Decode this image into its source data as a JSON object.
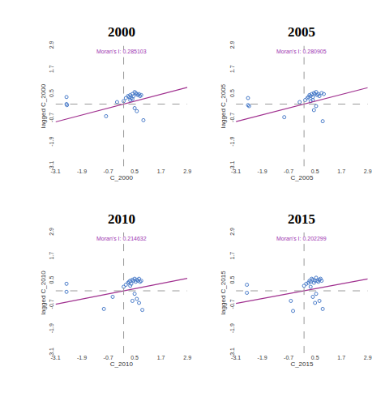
{
  "chart_data": [
    {
      "type": "scatter",
      "title": "2000",
      "annotation": "Moran's I: 0.285103",
      "x_label": "C_2000",
      "y_label": "lagged C_2000",
      "xlim": [
        -3.1,
        2.9
      ],
      "ylim": [
        -3.1,
        2.9
      ],
      "xticks": [
        -3.1,
        -1.9,
        -0.7,
        0.5,
        1.7,
        2.9
      ],
      "yticks": [
        -3.1,
        -1.9,
        -0.7,
        0.5,
        1.7,
        2.9
      ],
      "reference_lines": {
        "x": 0,
        "y": 0
      },
      "series": [
        {
          "type": "scatter",
          "color": "#4a7cc9",
          "marker": "open circle",
          "x": [
            -2.6,
            -2.6,
            -2.58,
            -0.8,
            -0.3,
            0.0,
            0.1,
            0.2,
            0.25,
            0.3,
            0.35,
            0.4,
            0.45,
            0.5,
            0.55,
            0.6,
            0.65,
            0.7,
            0.75,
            0.8,
            0.3,
            0.4,
            0.5,
            0.6,
            0.9
          ],
          "values": [
            0.35,
            0.0,
            -0.05,
            -0.6,
            0.1,
            0.15,
            0.3,
            0.4,
            0.35,
            0.45,
            0.3,
            0.5,
            0.4,
            0.6,
            0.55,
            0.5,
            0.45,
            0.5,
            0.4,
            0.45,
            0.2,
            0.25,
            -0.2,
            -0.35,
            -0.8
          ]
        },
        {
          "type": "line",
          "color": "#a0308f",
          "line_style": "solid",
          "x": [
            -3.1,
            2.9
          ],
          "values": [
            -0.884,
            0.827
          ]
        }
      ]
    },
    {
      "type": "scatter",
      "title": "2005",
      "annotation": "Moran's I: 0.280905",
      "x_label": "C_2005",
      "y_label": "lagged C_2005",
      "xlim": [
        -3.1,
        2.9
      ],
      "ylim": [
        -3.1,
        2.9
      ],
      "xticks": [
        -3.1,
        -1.9,
        -0.7,
        0.5,
        1.7,
        2.9
      ],
      "yticks": [
        -3.1,
        -1.9,
        -0.7,
        0.5,
        1.7,
        2.9
      ],
      "reference_lines": {
        "x": 0,
        "y": 0
      },
      "series": [
        {
          "type": "scatter",
          "color": "#4a7cc9",
          "marker": "open circle",
          "x": [
            -2.55,
            -2.55,
            -2.5,
            -0.9,
            -0.2,
            0.05,
            0.15,
            0.2,
            0.25,
            0.3,
            0.35,
            0.4,
            0.45,
            0.5,
            0.55,
            0.6,
            0.65,
            0.7,
            0.8,
            0.9,
            0.3,
            0.4,
            0.45,
            0.55,
            0.85
          ],
          "values": [
            0.3,
            -0.05,
            -0.1,
            -0.65,
            0.1,
            0.2,
            0.3,
            0.35,
            0.45,
            0.4,
            0.5,
            0.35,
            0.55,
            0.5,
            0.6,
            0.45,
            0.5,
            0.4,
            0.55,
            0.5,
            0.15,
            0.2,
            -0.3,
            -0.1,
            -0.85
          ]
        },
        {
          "type": "line",
          "color": "#a0308f",
          "line_style": "solid",
          "x": [
            -3.1,
            2.9
          ],
          "values": [
            -0.871,
            0.815
          ]
        }
      ]
    },
    {
      "type": "scatter",
      "title": "2010",
      "annotation": "Moran's I: 0.214632",
      "x_label": "C_2010",
      "y_label": "lagged C_2010",
      "xlim": [
        -3.1,
        2.9
      ],
      "ylim": [
        -3.1,
        2.9
      ],
      "xticks": [
        -3.1,
        -1.9,
        -0.7,
        0.5,
        1.7,
        2.9
      ],
      "yticks": [
        -3.1,
        -1.9,
        -0.7,
        0.5,
        1.7,
        2.9
      ],
      "reference_lines": {
        "x": 0,
        "y": 0
      },
      "series": [
        {
          "type": "scatter",
          "color": "#4a7cc9",
          "marker": "open circle",
          "x": [
            -2.6,
            -2.6,
            -0.9,
            -0.5,
            0.0,
            0.1,
            0.2,
            0.25,
            0.3,
            0.35,
            0.4,
            0.45,
            0.5,
            0.55,
            0.6,
            0.65,
            0.7,
            0.75,
            0.8,
            0.3,
            0.4,
            0.5,
            0.6,
            0.7,
            0.85
          ],
          "values": [
            0.35,
            -0.05,
            -0.9,
            -0.3,
            0.2,
            0.3,
            0.4,
            0.45,
            0.5,
            0.35,
            0.55,
            0.5,
            0.6,
            0.45,
            0.55,
            0.5,
            0.6,
            0.45,
            0.5,
            0.25,
            -0.5,
            -0.15,
            -0.4,
            -0.6,
            -0.95
          ]
        },
        {
          "type": "line",
          "color": "#a0308f",
          "line_style": "solid",
          "x": [
            -3.1,
            2.9
          ],
          "values": [
            -0.665,
            0.622
          ]
        }
      ]
    },
    {
      "type": "scatter",
      "title": "2015",
      "annotation": "Moran's I: 0.202299",
      "x_label": "C_2015",
      "y_label": "lagged C_2015",
      "xlim": [
        -3.1,
        2.9
      ],
      "ylim": [
        -3.1,
        2.9
      ],
      "xticks": [
        -3.1,
        -1.9,
        -0.7,
        0.5,
        1.7,
        2.9
      ],
      "yticks": [
        -3.1,
        -1.9,
        -0.7,
        0.5,
        1.7,
        2.9
      ],
      "reference_lines": {
        "x": 0,
        "y": 0
      },
      "series": [
        {
          "type": "scatter",
          "color": "#4a7cc9",
          "marker": "open circle",
          "x": [
            -2.6,
            -2.6,
            -0.6,
            -0.5,
            0.0,
            0.1,
            0.2,
            0.25,
            0.3,
            0.35,
            0.4,
            0.45,
            0.5,
            0.55,
            0.6,
            0.65,
            0.7,
            0.75,
            0.8,
            0.3,
            0.4,
            0.5,
            0.55,
            0.7,
            0.85
          ],
          "values": [
            0.3,
            -0.1,
            -0.5,
            -1.0,
            0.25,
            0.35,
            0.4,
            0.5,
            0.45,
            0.6,
            0.55,
            0.4,
            0.5,
            0.65,
            0.5,
            0.45,
            0.55,
            0.6,
            0.5,
            0.2,
            -0.3,
            -0.6,
            -0.15,
            -0.5,
            -0.9
          ]
        },
        {
          "type": "line",
          "color": "#a0308f",
          "line_style": "solid",
          "x": [
            -3.1,
            2.9
          ],
          "values": [
            -0.627,
            0.587
          ]
        }
      ]
    }
  ]
}
